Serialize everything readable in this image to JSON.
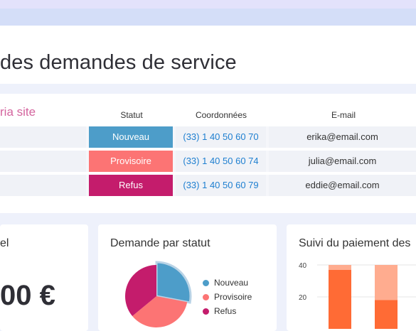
{
  "page": {
    "title": "des demandes de service"
  },
  "table": {
    "group_label": "ria site",
    "headers": {
      "status": "Statut",
      "contact": "Coordonnées",
      "email": "E-mail"
    },
    "rows": [
      {
        "status": "Nouveau",
        "status_color": "#4d9dc9",
        "phone": "(33) 1 40 50 60 70",
        "email": "erika@email.com"
      },
      {
        "status": "Provisoire",
        "status_color": "#fc7474",
        "phone": "(33) 1 40 50 60 74",
        "email": "julia@email.com"
      },
      {
        "status": "Refus",
        "status_color": "#c41c6c",
        "phone": "(33) 1 40 50 60 79",
        "email": "eddie@email.com"
      }
    ]
  },
  "cards": {
    "total": {
      "title": "el",
      "amount": "00 €"
    },
    "status_chart": {
      "title": "Demande par statut"
    },
    "payment_chart": {
      "title": "Suivi du paiement des"
    }
  },
  "chart_data": [
    {
      "type": "pie",
      "title": "Demande par statut",
      "labels": [
        "Nouveau",
        "Provisoire",
        "Refus"
      ],
      "values": [
        28,
        36,
        36
      ],
      "colors": [
        "#4d9dc9",
        "#fc7474",
        "#c41c6c"
      ],
      "legend": "right"
    },
    {
      "type": "bar",
      "title": "Suivi du paiement des",
      "stacked": true,
      "ylim": [
        0,
        40
      ],
      "yticks": [
        20,
        40
      ],
      "categories": [
        "",
        ""
      ],
      "series": [
        {
          "values": [
            37,
            18
          ],
          "color": "#ff6b35"
        },
        {
          "values": [
            3,
            22
          ],
          "color": "#ffac8f"
        }
      ]
    }
  ]
}
